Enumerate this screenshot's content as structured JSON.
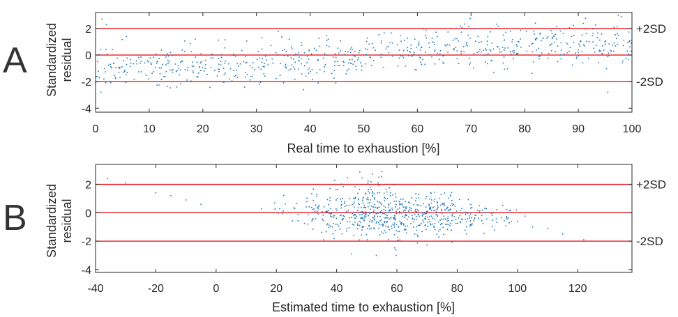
{
  "colors": {
    "points": "#1f77b4",
    "ref_lines": "#e8000b",
    "axes": "#262626"
  },
  "chart_data": [
    {
      "type": "scatter",
      "panel_label": "A",
      "xlabel": "Real time to exhaustion [%]",
      "ylabel": "Standardized residual",
      "xlim": [
        0,
        100
      ],
      "ylim": [
        -4.3,
        3.2
      ],
      "xticks": [
        "0",
        "10",
        "20",
        "30",
        "40",
        "50",
        "60",
        "70",
        "80",
        "90",
        "100"
      ],
      "yticks": [
        "-4",
        "-2",
        "0",
        "2"
      ],
      "reference_lines": [
        {
          "y": 2,
          "label": "+2SD"
        },
        {
          "y": 0,
          "label": ""
        },
        {
          "y": -2,
          "label": "-2SD"
        }
      ],
      "n_points": 700,
      "trend": {
        "x": [
          0,
          10,
          20,
          30,
          40,
          50,
          60,
          70,
          80,
          90,
          100
        ],
        "y": [
          -1.0,
          -0.9,
          -0.8,
          -0.7,
          -0.3,
          0.0,
          0.4,
          0.6,
          0.8,
          0.8,
          0.9
        ]
      },
      "spread_sd": 0.75,
      "highlighted_points": [
        {
          "x": 1.2,
          "y": 2.7
        },
        {
          "x": 2.0,
          "y": 2.3
        },
        {
          "x": 1.0,
          "y": -2.8
        },
        {
          "x": 95.5,
          "y": -2.8
        },
        {
          "x": 98.0,
          "y": 2.9
        },
        {
          "x": 82.0,
          "y": 2.4
        },
        {
          "x": 30.5,
          "y": -2.2
        },
        {
          "x": 41.5,
          "y": -2.1
        },
        {
          "x": 31.0,
          "y": 1.3
        }
      ],
      "grid": false
    },
    {
      "type": "scatter",
      "panel_label": "B",
      "xlabel": "Estimated time to exhaustion [%]",
      "ylabel": "Standardized residual",
      "xlim": [
        -40,
        138
      ],
      "ylim": [
        -4.2,
        3.4
      ],
      "xticks": [
        "-40",
        "-20",
        "0",
        "20",
        "40",
        "60",
        "80",
        "100",
        "120"
      ],
      "yticks": [
        "-4",
        "-2",
        "0",
        "2"
      ],
      "reference_lines": [
        {
          "y": 2,
          "label": "+2SD"
        },
        {
          "y": 0,
          "label": ""
        },
        {
          "y": -2,
          "label": "-2SD"
        }
      ],
      "n_points": 700,
      "isolated_points": [
        {
          "x": -36,
          "y": 2.4
        },
        {
          "x": -30,
          "y": 2.1
        },
        {
          "x": -20,
          "y": 1.4
        },
        {
          "x": -15,
          "y": 1.2
        },
        {
          "x": -10,
          "y": 0.9
        },
        {
          "x": -5,
          "y": 0.6
        },
        {
          "x": 122,
          "y": -1.9
        },
        {
          "x": 115,
          "y": -1.5
        },
        {
          "x": 110,
          "y": -1.1
        },
        {
          "x": 105,
          "y": -1.0
        },
        {
          "x": 100,
          "y": -0.6
        },
        {
          "x": 55,
          "y": 2.9
        },
        {
          "x": 45,
          "y": -2.9
        }
      ],
      "grid": false
    }
  ]
}
